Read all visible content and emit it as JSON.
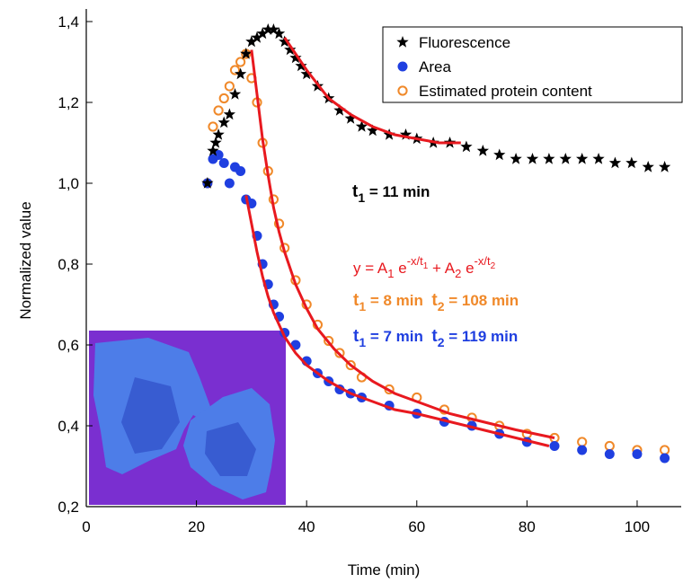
{
  "chart_data": {
    "type": "scatter",
    "xlabel": "Time (min)",
    "ylabel": "Normalized value",
    "xlim": [
      0,
      108
    ],
    "ylim": [
      0.2,
      1.4
    ],
    "xticks": [
      0,
      20,
      40,
      60,
      80,
      100
    ],
    "yticks": [
      {
        "value": 0.2,
        "label": "0,2"
      },
      {
        "value": 0.4,
        "label": "0,4"
      },
      {
        "value": 0.6,
        "label": "0,6"
      },
      {
        "value": 0.8,
        "label": "0,8"
      },
      {
        "value": 1.0,
        "label": "1,0"
      },
      {
        "value": 1.2,
        "label": "1,2"
      },
      {
        "value": 1.4,
        "label": "1,4"
      }
    ],
    "legend": "upper right",
    "series": [
      {
        "name": "Fluorescence",
        "color": "#000000",
        "marker": "star",
        "x": [
          22,
          23,
          23.5,
          24,
          25,
          26,
          27,
          28,
          29,
          30,
          31,
          32,
          33,
          34,
          35,
          36,
          37,
          38,
          39,
          40,
          42,
          44,
          46,
          48,
          50,
          52,
          55,
          58,
          60,
          63,
          66,
          69,
          72,
          75,
          78,
          81,
          84,
          87,
          90,
          93,
          96,
          99,
          102,
          105
        ],
        "values": [
          1.0,
          1.08,
          1.1,
          1.12,
          1.15,
          1.17,
          1.22,
          1.27,
          1.32,
          1.35,
          1.36,
          1.37,
          1.38,
          1.38,
          1.37,
          1.35,
          1.33,
          1.31,
          1.29,
          1.27,
          1.24,
          1.21,
          1.18,
          1.16,
          1.14,
          1.13,
          1.12,
          1.12,
          1.11,
          1.1,
          1.1,
          1.09,
          1.08,
          1.07,
          1.06,
          1.06,
          1.06,
          1.06,
          1.06,
          1.06,
          1.05,
          1.05,
          1.04,
          1.04
        ]
      },
      {
        "name": "Area",
        "color": "#1f3fe0",
        "marker": "filled-circle",
        "x": [
          22,
          23,
          24,
          25,
          26,
          27,
          28,
          29,
          30,
          31,
          32,
          33,
          34,
          35,
          36,
          38,
          40,
          42,
          44,
          46,
          48,
          50,
          55,
          60,
          65,
          70,
          75,
          80,
          85,
          90,
          95,
          100,
          105
        ],
        "values": [
          1.0,
          1.06,
          1.07,
          1.05,
          1.0,
          1.04,
          1.03,
          0.96,
          0.95,
          0.87,
          0.8,
          0.75,
          0.7,
          0.67,
          0.63,
          0.6,
          0.56,
          0.53,
          0.51,
          0.49,
          0.48,
          0.47,
          0.45,
          0.43,
          0.41,
          0.4,
          0.38,
          0.36,
          0.35,
          0.34,
          0.33,
          0.33,
          0.32
        ]
      },
      {
        "name": "Estimated protein content",
        "color": "#f0892a",
        "marker": "open-circle",
        "x": [
          22,
          23,
          24,
          25,
          26,
          27,
          28,
          29,
          30,
          31,
          32,
          33,
          34,
          35,
          36,
          38,
          40,
          42,
          44,
          46,
          48,
          50,
          55,
          60,
          65,
          70,
          75,
          80,
          85,
          90,
          95,
          100,
          105
        ],
        "values": [
          1.0,
          1.14,
          1.18,
          1.21,
          1.24,
          1.28,
          1.3,
          1.32,
          1.26,
          1.2,
          1.1,
          1.03,
          0.96,
          0.9,
          0.84,
          0.76,
          0.7,
          0.65,
          0.61,
          0.58,
          0.55,
          0.52,
          0.49,
          0.47,
          0.44,
          0.42,
          0.4,
          0.38,
          0.37,
          0.36,
          0.35,
          0.34,
          0.34
        ]
      },
      {
        "color": "#e8191f",
        "marker": "line",
        "x": [
          36,
          40,
          44,
          48,
          52,
          56,
          60,
          64,
          68
        ],
        "values": [
          1.36,
          1.28,
          1.21,
          1.17,
          1.14,
          1.12,
          1.11,
          1.1,
          1.1
        ]
      },
      {
        "color": "#e8191f",
        "marker": "line",
        "x": [
          29,
          30,
          31,
          32,
          33,
          34,
          36,
          38,
          40,
          44,
          48,
          52,
          56,
          60,
          66,
          72,
          78,
          84
        ],
        "values": [
          0.97,
          0.9,
          0.83,
          0.77,
          0.72,
          0.68,
          0.62,
          0.58,
          0.55,
          0.51,
          0.48,
          0.46,
          0.44,
          0.43,
          0.41,
          0.39,
          0.37,
          0.35
        ]
      },
      {
        "color": "#e8191f",
        "marker": "line",
        "x": [
          30,
          31,
          32,
          33,
          34,
          35,
          36,
          38,
          40,
          42,
          45,
          48,
          52,
          56,
          60,
          66,
          72,
          78,
          85
        ],
        "values": [
          1.33,
          1.22,
          1.11,
          1.02,
          0.94,
          0.88,
          0.83,
          0.75,
          0.69,
          0.64,
          0.59,
          0.55,
          0.51,
          0.48,
          0.46,
          0.43,
          0.41,
          0.39,
          0.37
        ]
      }
    ],
    "annotations": [
      {
        "parts": [
          "t",
          "1",
          " = 11 min"
        ],
        "color": "#000000"
      },
      {
        "parts": [
          "y = A",
          "1",
          " e",
          "-x/t",
          "1",
          " + A",
          "2",
          " e",
          "-x/t",
          "2"
        ],
        "color": "#e8191f"
      },
      {
        "parts": [
          "t",
          "1",
          " = 8 min  ",
          "t",
          "2",
          " = 108 min"
        ],
        "color": "#f0892a"
      },
      {
        "parts": [
          "t",
          "1",
          " = 7 min  ",
          "t",
          "2",
          " = 119 min"
        ],
        "color": "#1f3fe0"
      }
    ]
  }
}
